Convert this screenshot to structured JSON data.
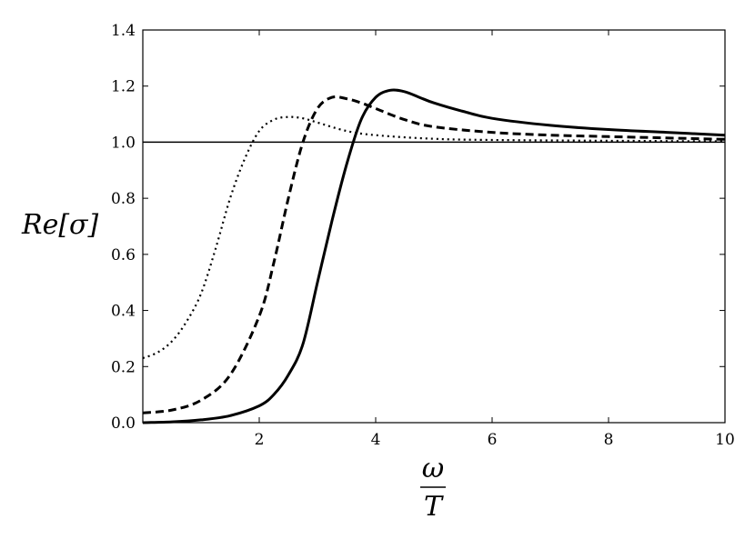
{
  "chart_data": {
    "type": "line",
    "title": "",
    "xlabel_numerator": "ω",
    "xlabel_denominator": "T",
    "ylabel": "Re[σ]",
    "xlim": [
      0,
      10
    ],
    "ylim": [
      0,
      1.4
    ],
    "x_ticks": [
      2,
      4,
      6,
      8,
      10
    ],
    "x_tick_labels": [
      "2",
      "4",
      "6",
      "8",
      "10"
    ],
    "y_ticks": [
      0.0,
      0.2,
      0.4,
      0.6,
      0.8,
      1.0,
      1.2,
      1.4
    ],
    "y_tick_labels": [
      "0.0",
      "0.2",
      "0.4",
      "0.6",
      "0.8",
      "1.0",
      "1.2",
      "1.4"
    ],
    "grid": false,
    "reference_line": {
      "y": 1.0,
      "style": "solid",
      "color": "#000000"
    },
    "series": [
      {
        "style": "dotted",
        "color": "#000000",
        "x": [
          0,
          0.25,
          0.5,
          0.75,
          1.0,
          1.25,
          1.5,
          1.75,
          2.0,
          2.25,
          2.5,
          2.75,
          3.0,
          3.5,
          4.0,
          5.0,
          6.0,
          8.0,
          10.0
        ],
        "y": [
          0.23,
          0.25,
          0.29,
          0.36,
          0.46,
          0.62,
          0.8,
          0.94,
          1.04,
          1.08,
          1.09,
          1.085,
          1.07,
          1.04,
          1.025,
          1.012,
          1.008,
          1.005,
          1.003
        ]
      },
      {
        "style": "dashed",
        "color": "#000000",
        "x": [
          0,
          0.5,
          1.0,
          1.5,
          2.0,
          2.25,
          2.5,
          2.75,
          3.0,
          3.25,
          3.5,
          3.75,
          4.0,
          4.5,
          5.0,
          6.0,
          7.0,
          8.0,
          10.0
        ],
        "y": [
          0.035,
          0.045,
          0.08,
          0.17,
          0.38,
          0.57,
          0.8,
          1.0,
          1.12,
          1.16,
          1.155,
          1.14,
          1.12,
          1.08,
          1.055,
          1.035,
          1.025,
          1.02,
          1.01
        ]
      },
      {
        "style": "solid",
        "color": "#000000",
        "x": [
          0,
          0.5,
          1.0,
          1.5,
          2.0,
          2.25,
          2.5,
          2.75,
          3.0,
          3.25,
          3.5,
          3.75,
          4.0,
          4.25,
          4.5,
          4.75,
          5.0,
          5.5,
          6.0,
          7.0,
          8.0,
          9.0,
          10.0
        ],
        "y": [
          0.0,
          0.003,
          0.01,
          0.025,
          0.06,
          0.1,
          0.17,
          0.28,
          0.5,
          0.72,
          0.92,
          1.08,
          1.16,
          1.185,
          1.18,
          1.16,
          1.14,
          1.11,
          1.085,
          1.06,
          1.045,
          1.035,
          1.025
        ]
      }
    ]
  }
}
